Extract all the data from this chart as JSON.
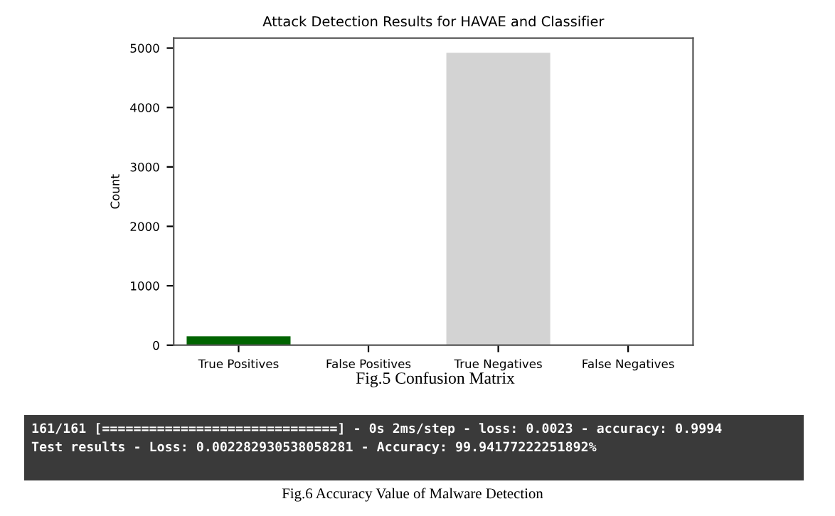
{
  "chart_data": {
    "type": "bar",
    "title": "Attack Detection Results for HAVAE and Classifier",
    "ylabel": "Count",
    "categories": [
      "True Positives",
      "False Positives",
      "True Negatives",
      "False Negatives"
    ],
    "values": [
      150,
      0,
      4920,
      0
    ],
    "colors": [
      "#006400",
      "#ff0000",
      "#d3d3d3",
      "#0000ff"
    ],
    "ylim": [
      0,
      5166
    ],
    "yticks": [
      0,
      1000,
      2000,
      3000,
      4000,
      5000
    ],
    "grid": false,
    "legend": false,
    "annotations": [
      "Fig.5 Confusion Matrix",
      "161/161 [==============================] - 0s 2ms/step - loss: 0.0023 - accuracy: 0.9994",
      "Test results - Loss: 0.002282930538058281 - Accuracy: 99.94177222251892%",
      "Fig.6 Accuracy Value of Malware Detection"
    ]
  }
}
